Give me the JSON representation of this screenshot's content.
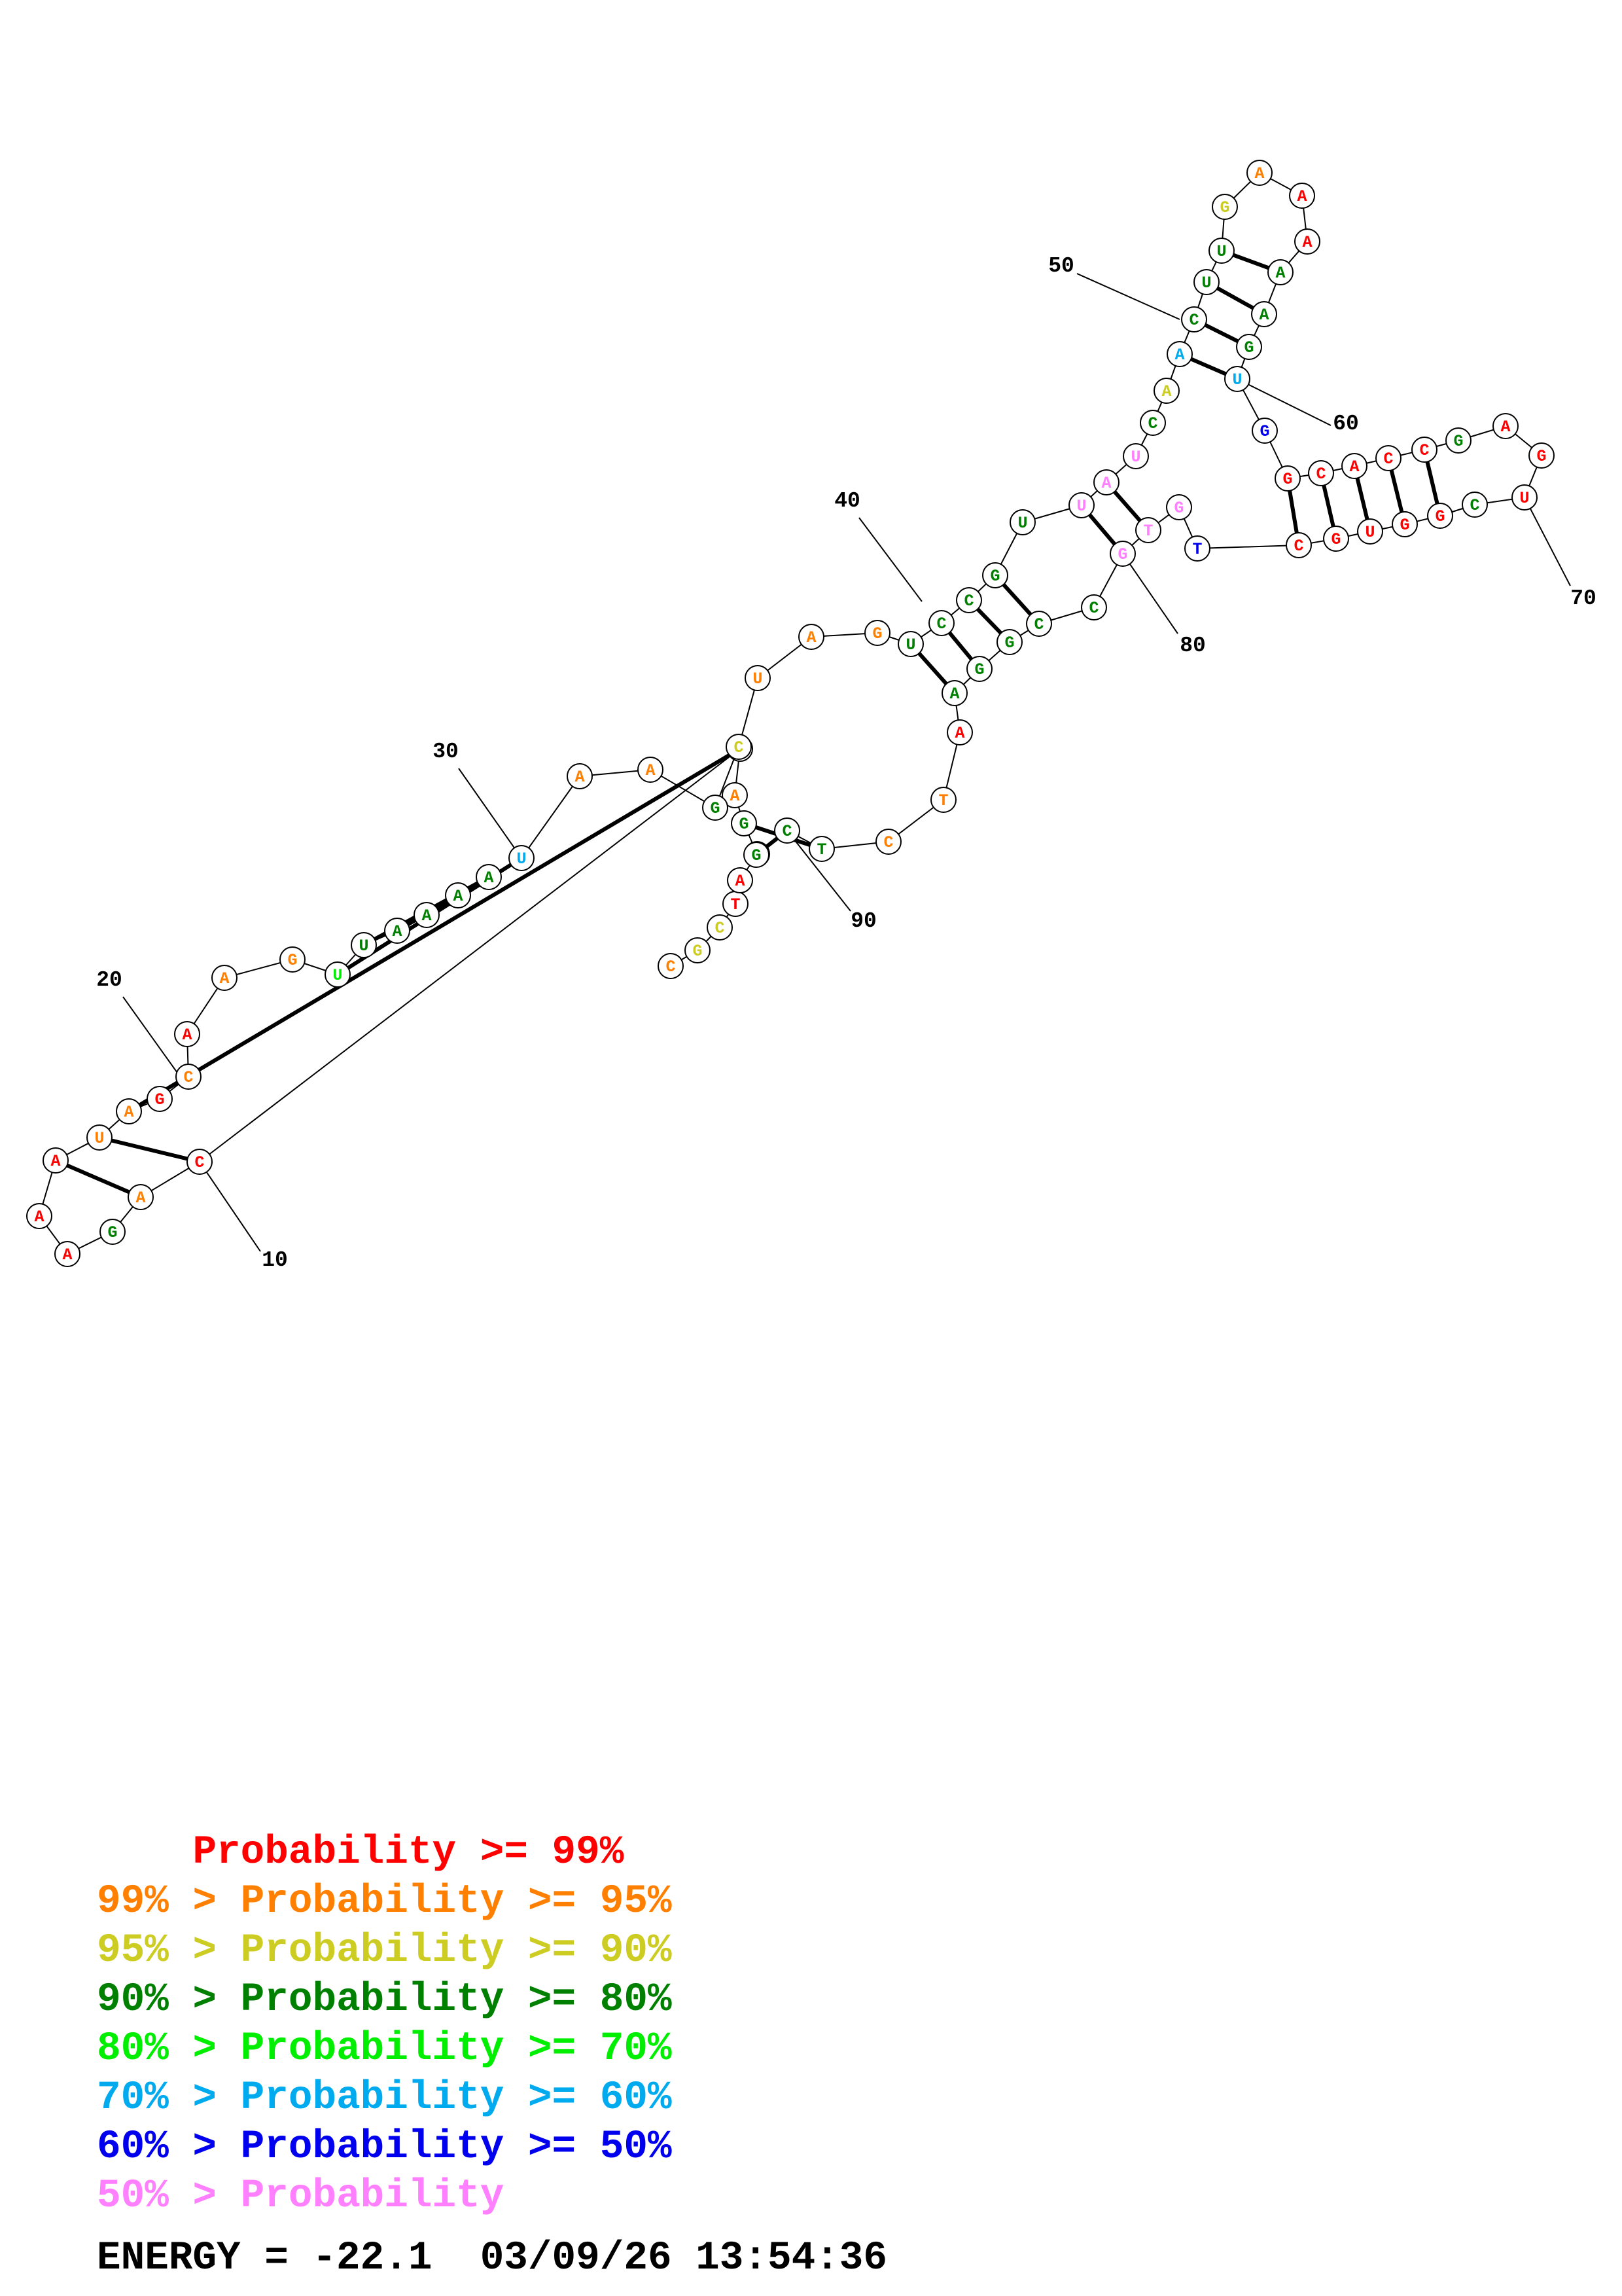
{
  "colors": {
    "p99": "#ff0000",
    "p95": "#ff8000",
    "p90": "#cccc22",
    "p80": "#008000",
    "p70": "#00ee00",
    "p60": "#00aaee",
    "p50": "#0000ee",
    "plow": "#ff80ff"
  },
  "sequence": {
    "nucleotides": [
      {
        "n": 1,
        "base": "C",
        "prob": "p95"
      },
      {
        "n": 2,
        "base": "G",
        "prob": "p90"
      },
      {
        "n": 3,
        "base": "C",
        "prob": "p90"
      },
      {
        "n": 4,
        "base": "T",
        "prob": "p99"
      },
      {
        "n": 5,
        "base": "A",
        "prob": "p99"
      },
      {
        "n": 6,
        "base": "C",
        "prob": "p80"
      },
      {
        "n": 7,
        "base": "G",
        "prob": "p80"
      },
      {
        "n": 8,
        "base": "A",
        "prob": "p95"
      },
      {
        "n": 9,
        "base": "U",
        "prob": "p95"
      },
      {
        "n": 10,
        "base": "C",
        "prob": "p99"
      },
      {
        "n": 11,
        "base": "A",
        "prob": "p95"
      },
      {
        "n": 12,
        "base": "G",
        "prob": "p80"
      },
      {
        "n": 13,
        "base": "A",
        "prob": "p99"
      },
      {
        "n": 14,
        "base": "A",
        "prob": "p99"
      },
      {
        "n": 15,
        "base": "A",
        "prob": "p99"
      },
      {
        "n": 16,
        "base": "U",
        "prob": "p95"
      },
      {
        "n": 17,
        "base": "A",
        "prob": "p95"
      },
      {
        "n": 18,
        "base": "G",
        "prob": "p99"
      },
      {
        "n": 19,
        "base": "C",
        "prob": "p95"
      },
      {
        "n": 20,
        "base": "A",
        "prob": "p99"
      },
      {
        "n": 21,
        "base": "A",
        "prob": "p95"
      },
      {
        "n": 22,
        "base": "G",
        "prob": "p95"
      },
      {
        "n": 23,
        "base": "U",
        "prob": "p70"
      },
      {
        "n": 24,
        "base": "U",
        "prob": "p80"
      },
      {
        "n": 25,
        "base": "A",
        "prob": "p80"
      },
      {
        "n": 26,
        "base": "A",
        "prob": "p80"
      },
      {
        "n": 27,
        "base": "A",
        "prob": "p80"
      },
      {
        "n": 28,
        "base": "A",
        "prob": "p80"
      },
      {
        "n": 29,
        "base": "U",
        "prob": "p60"
      },
      {
        "n": 30,
        "base": "A",
        "prob": "p95"
      },
      {
        "n": 31,
        "base": "A",
        "prob": "p95"
      },
      {
        "n": 32,
        "base": "G",
        "prob": "p80"
      },
      {
        "n": 33,
        "base": "C",
        "prob": "p90"
      },
      {
        "n": 34,
        "base": "U",
        "prob": "p95"
      },
      {
        "n": 35,
        "base": "A",
        "prob": "p95"
      },
      {
        "n": 36,
        "base": "G",
        "prob": "p95"
      },
      {
        "n": 37,
        "base": "U",
        "prob": "p80"
      },
      {
        "n": 38,
        "base": "C",
        "prob": "p80"
      },
      {
        "n": 39,
        "base": "C",
        "prob": "p80"
      },
      {
        "n": 40,
        "base": "G",
        "prob": "p80"
      },
      {
        "n": 41,
        "base": "U",
        "prob": "p80"
      },
      {
        "n": 42,
        "base": "U",
        "prob": "plow"
      },
      {
        "n": 43,
        "base": "A",
        "prob": "plow"
      },
      {
        "n": 44,
        "base": "U",
        "prob": "plow"
      },
      {
        "n": 45,
        "base": "C",
        "prob": "p80"
      },
      {
        "n": 46,
        "base": "A",
        "prob": "p90"
      },
      {
        "n": 47,
        "base": "A",
        "prob": "p60"
      },
      {
        "n": 48,
        "base": "C",
        "prob": "p80"
      },
      {
        "n": 49,
        "base": "U",
        "prob": "p80"
      },
      {
        "n": 50,
        "base": "U",
        "prob": "p80"
      },
      {
        "n": 51,
        "base": "G",
        "prob": "p90"
      },
      {
        "n": 52,
        "base": "A",
        "prob": "p95"
      },
      {
        "n": 53,
        "base": "A",
        "prob": "p99"
      },
      {
        "n": 54,
        "base": "A",
        "prob": "p99"
      },
      {
        "n": 55,
        "base": "A",
        "prob": "p80"
      },
      {
        "n": 56,
        "base": "A",
        "prob": "p80"
      },
      {
        "n": 57,
        "base": "G",
        "prob": "p80"
      },
      {
        "n": 58,
        "base": "U",
        "prob": "p60"
      },
      {
        "n": 59,
        "base": "G",
        "prob": "p50"
      },
      {
        "n": 60,
        "base": "G",
        "prob": "p99"
      },
      {
        "n": 61,
        "base": "C",
        "prob": "p99"
      },
      {
        "n": 62,
        "base": "A",
        "prob": "p99"
      },
      {
        "n": 63,
        "base": "C",
        "prob": "p99"
      },
      {
        "n": 64,
        "base": "C",
        "prob": "p99"
      },
      {
        "n": 65,
        "base": "G",
        "prob": "p80"
      },
      {
        "n": 66,
        "base": "A",
        "prob": "p99"
      },
      {
        "n": 67,
        "base": "G",
        "prob": "p99"
      },
      {
        "n": 68,
        "base": "U",
        "prob": "p99"
      },
      {
        "n": 69,
        "base": "C",
        "prob": "p80"
      },
      {
        "n": 70,
        "base": "G",
        "prob": "p99"
      },
      {
        "n": 71,
        "base": "G",
        "prob": "p99"
      },
      {
        "n": 72,
        "base": "U",
        "prob": "p99"
      },
      {
        "n": 73,
        "base": "G",
        "prob": "p99"
      },
      {
        "n": 74,
        "base": "C",
        "prob": "p99"
      },
      {
        "n": 75,
        "base": "T",
        "prob": "p50"
      },
      {
        "n": 76,
        "base": "G",
        "prob": "plow"
      },
      {
        "n": 77,
        "base": "T",
        "prob": "plow"
      },
      {
        "n": 78,
        "base": "G",
        "prob": "plow"
      },
      {
        "n": 79,
        "base": "C",
        "prob": "p80"
      },
      {
        "n": 80,
        "base": "C",
        "prob": "p80"
      },
      {
        "n": 81,
        "base": "G",
        "prob": "p80"
      },
      {
        "n": 82,
        "base": "G",
        "prob": "p80"
      },
      {
        "n": 83,
        "base": "A",
        "prob": "p80"
      },
      {
        "n": 84,
        "base": "A",
        "prob": "p99"
      },
      {
        "n": 85,
        "base": "T",
        "prob": "p95"
      },
      {
        "n": 86,
        "base": "C",
        "prob": "p95"
      },
      {
        "n": 87,
        "base": "T",
        "prob": "p80"
      },
      {
        "n": 88,
        "base": "C",
        "prob": "p80"
      },
      {
        "n": 89,
        "base": "G",
        "prob": "p80"
      }
    ],
    "pairs": [
      [
        6,
        88
      ],
      [
        7,
        87
      ],
      [
        9,
        17
      ],
      [
        10,
        16
      ],
      [
        11,
        15
      ],
      [
        23,
        29
      ],
      [
        24,
        28
      ],
      [
        25,
        27
      ],
      [
        37,
        83
      ],
      [
        38,
        82
      ],
      [
        39,
        81
      ],
      [
        40,
        80
      ],
      [
        42,
        78
      ],
      [
        43,
        77
      ],
      [
        47,
        58
      ],
      [
        48,
        57
      ],
      [
        49,
        56
      ],
      [
        50,
        55
      ],
      [
        60,
        74
      ],
      [
        61,
        73
      ],
      [
        62,
        72
      ],
      [
        63,
        71
      ],
      [
        64,
        70
      ]
    ],
    "index_labels": [
      "10",
      "20",
      "30",
      "40",
      "50",
      "60",
      "70",
      "80",
      "90"
    ]
  },
  "legend": [
    {
      "prefix": "    ",
      "label": "Probability >= 99%",
      "color_key": "p99"
    },
    {
      "prefix": "99% > ",
      "label": "Probability >= 95%",
      "color_key": "p95"
    },
    {
      "prefix": "95% > ",
      "label": "Probability >= 90%",
      "color_key": "p90"
    },
    {
      "prefix": "90% > ",
      "label": "Probability >= 80%",
      "color_key": "p80"
    },
    {
      "prefix": "80% > ",
      "label": "Probability >= 70%",
      "color_key": "p70"
    },
    {
      "prefix": "70% > ",
      "label": "Probability >= 60%",
      "color_key": "p60"
    },
    {
      "prefix": "60% > ",
      "label": "Probability >= 50%",
      "color_key": "p50"
    },
    {
      "prefix": "50% > ",
      "label": "Probability",
      "color_key": "plow"
    }
  ],
  "footer": {
    "energy": "ENERGY = -22.1",
    "timestamp": "03/09/26 13:54:36"
  }
}
